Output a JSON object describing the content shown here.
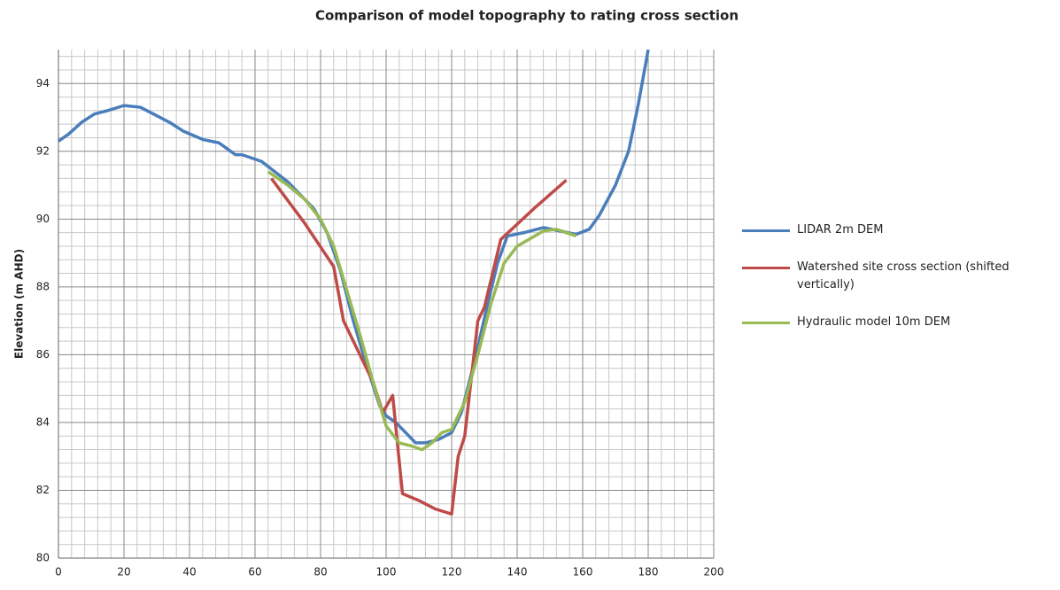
{
  "chart_data": {
    "type": "line",
    "title": "Comparison of model topography to rating cross section",
    "y_label": "Elevation  (m AHD)",
    "xlim": [
      0,
      200
    ],
    "xticks": [
      0,
      20,
      40,
      60,
      80,
      100,
      120,
      140,
      160,
      180,
      200
    ],
    "ylim": [
      80,
      95
    ],
    "yticks": [
      80,
      82,
      84,
      86,
      88,
      90,
      92,
      94
    ],
    "grid": true,
    "minor_divisions": 5,
    "legend": "right",
    "series": [
      {
        "name": "LIDAR 2m DEM",
        "color": "#4a7ebb",
        "x": [
          0,
          3,
          7,
          11,
          15,
          20,
          25,
          29,
          34,
          38,
          44,
          49,
          54,
          56,
          62,
          66,
          70,
          74,
          78,
          82,
          86,
          90,
          94,
          98,
          100,
          103,
          106,
          109,
          112,
          116,
          120,
          123,
          127,
          131,
          134,
          137,
          142,
          148,
          153,
          158,
          162,
          165,
          170,
          174,
          177,
          180
        ],
        "values": [
          92.3,
          92.5,
          92.85,
          93.1,
          93.2,
          93.35,
          93.3,
          93.1,
          92.85,
          92.6,
          92.35,
          92.25,
          91.9,
          91.9,
          91.7,
          91.4,
          91.1,
          90.7,
          90.3,
          89.6,
          88.5,
          87.0,
          85.7,
          84.5,
          84.2,
          84.0,
          83.7,
          83.4,
          83.4,
          83.5,
          83.7,
          84.3,
          85.8,
          87.5,
          88.7,
          89.5,
          89.6,
          89.75,
          89.65,
          89.55,
          89.7,
          90.1,
          91.0,
          92.0,
          93.4,
          95.0
        ]
      },
      {
        "name": "Watershed site cross section (shifted vertically)",
        "color": "#be4b48",
        "x": [
          65,
          75,
          84,
          87,
          92,
          96,
          99,
          102,
          105,
          110,
          115,
          120,
          122,
          124,
          128,
          130,
          135,
          145,
          155
        ],
        "values": [
          91.2,
          89.9,
          88.6,
          87.0,
          86.0,
          85.2,
          84.3,
          84.8,
          81.9,
          81.7,
          81.45,
          81.3,
          83.0,
          83.6,
          87.0,
          87.4,
          89.4,
          90.3,
          91.15
        ]
      },
      {
        "name": "Hydraulic model 10m DEM",
        "color": "#98b954",
        "x": [
          64,
          70,
          75,
          80,
          84,
          88,
          92,
          96,
          100,
          104,
          108,
          111,
          114,
          117,
          120,
          124,
          128,
          132,
          136,
          140,
          148,
          152,
          158
        ],
        "values": [
          91.4,
          91.0,
          90.6,
          90.0,
          89.2,
          87.9,
          86.6,
          85.2,
          83.9,
          83.4,
          83.3,
          83.2,
          83.4,
          83.7,
          83.8,
          84.6,
          86.0,
          87.5,
          88.7,
          89.2,
          89.65,
          89.7,
          89.5
        ]
      }
    ]
  }
}
